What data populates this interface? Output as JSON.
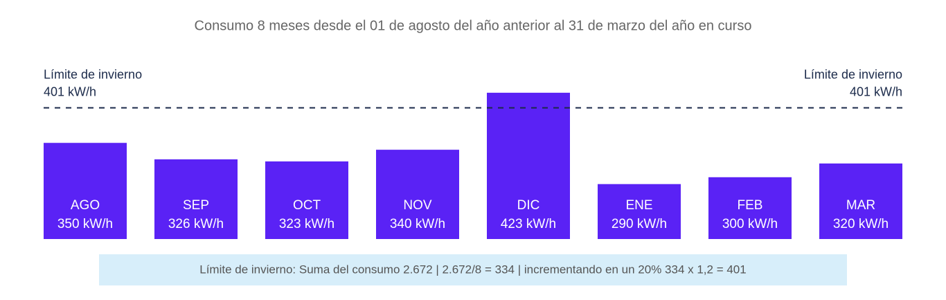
{
  "chart_data": {
    "type": "bar",
    "title": "Consumo 8 meses desde el 01 de agosto del año anterior al 31 de marzo del año en curso",
    "categories": [
      "AGO",
      "SEP",
      "OCT",
      "NOV",
      "DIC",
      "ENE",
      "FEB",
      "MAR"
    ],
    "values": [
      350,
      326,
      323,
      340,
      423,
      290,
      300,
      320
    ],
    "value_labels": [
      "350 kW/h",
      "326 kW/h",
      "323 kW/h",
      "340 kW/h",
      "423 kW/h",
      "290 kW/h",
      "300 kW/h",
      "320 kW/h"
    ],
    "color": "#5a22f5",
    "ylim": [
      210,
      440
    ],
    "limit_line": {
      "name": "Límite de invierno",
      "value": 401,
      "label": "401 kW/h",
      "color": "#1b2a4a"
    },
    "footnote": "Límite de invierno: Suma del consumo 2.672 | 2.672/8 = 334 | incrementando en un 20% 334 x 1,2 = 401"
  }
}
